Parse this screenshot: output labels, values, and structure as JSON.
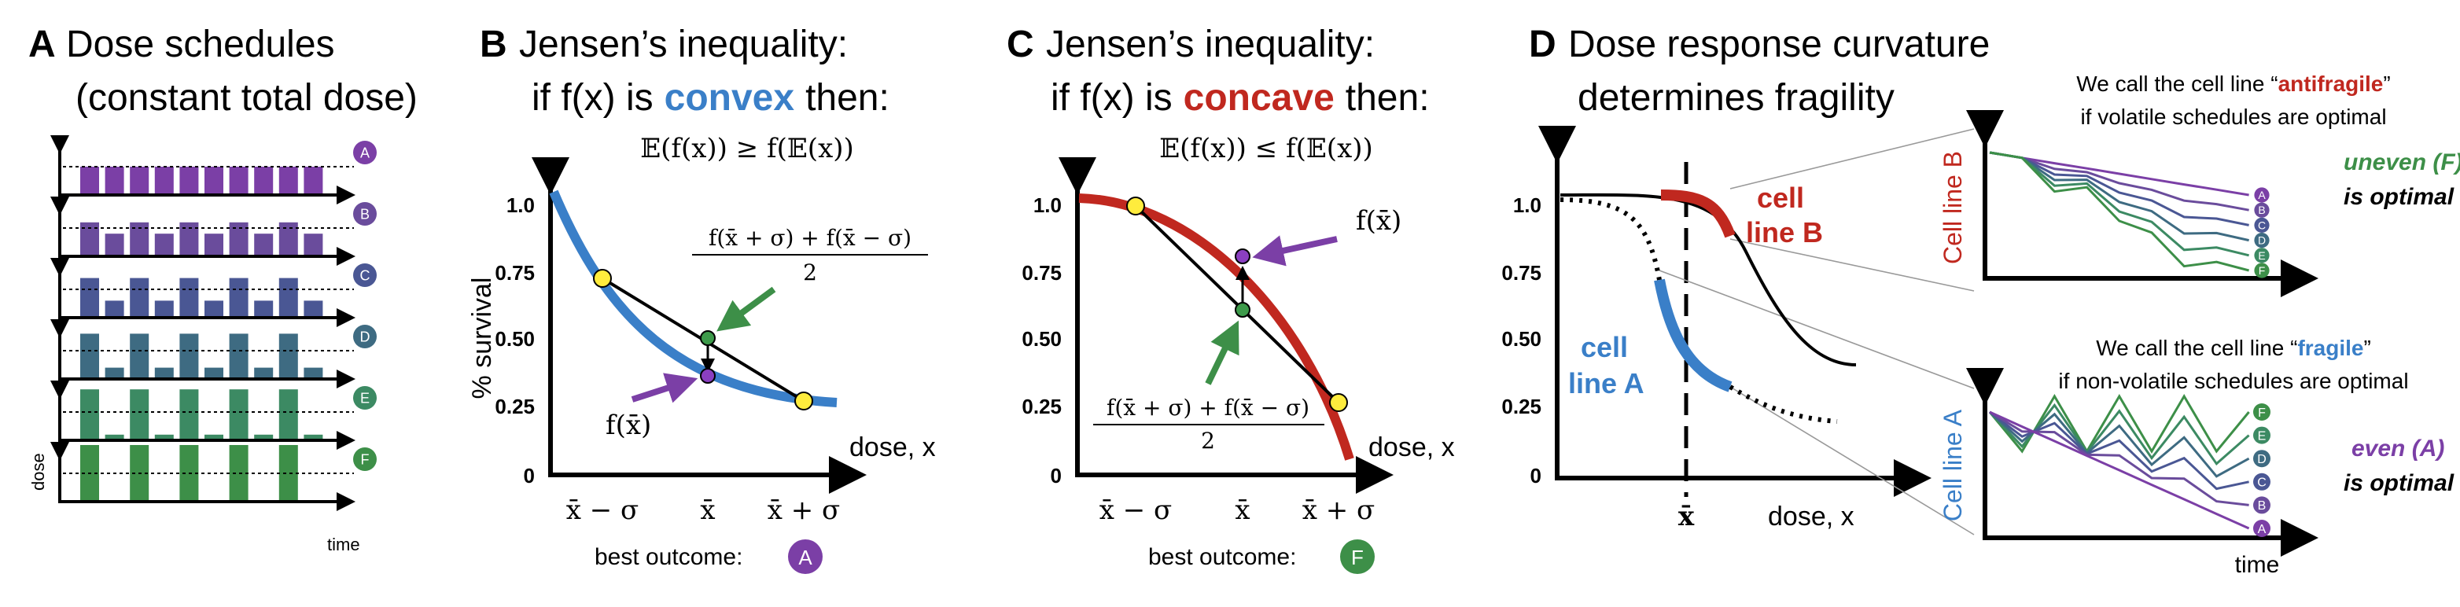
{
  "panel_a": {
    "letter": "A",
    "title": "Dose schedules",
    "subtitle": "(constant total dose)",
    "schedules": [
      "A",
      "B",
      "C",
      "D",
      "E",
      "F"
    ],
    "y_label": "dose",
    "x_label": "time"
  },
  "panel_b": {
    "letter": "B",
    "title": "Jensen’s inequality:",
    "subtitle_pre": "if f(x) is",
    "keyword": "convex",
    "subtitle_post": "then:",
    "inequality": "𝔼(f(x)) ≥ f(𝔼(x))",
    "y_label": "% survival",
    "yticks": [
      "1.0",
      "0.75",
      "0.50",
      "0.25",
      "0"
    ],
    "xticks": [
      "x̄ − σ",
      "x̄",
      "x̄ + σ"
    ],
    "x_label": "dose, x",
    "fraction_numerator": "f(x̄ + σ) + f(x̄ − σ)",
    "fraction_denominator": "2",
    "point_label": "f(x̄)",
    "outcome_label": "best outcome:",
    "outcome": "A"
  },
  "panel_c": {
    "letter": "C",
    "title": "Jensen’s inequality:",
    "subtitle_pre": "if f(x) is",
    "keyword": "concave",
    "subtitle_post": "then:",
    "inequality": "𝔼(f(x)) ≤ f(𝔼(x))",
    "yticks": [
      "1.0",
      "0.75",
      "0.50",
      "0.25",
      "0"
    ],
    "xticks": [
      "x̄ − σ",
      "x̄",
      "x̄ + σ"
    ],
    "x_label": "dose, x",
    "fraction_numerator": "f(x̄ + σ) + f(x̄ − σ)",
    "fraction_denominator": "2",
    "point_label": "f(x̄)",
    "outcome_label": "best outcome:",
    "outcome": "F"
  },
  "panel_d": {
    "letter": "D",
    "title": "Dose response curvature",
    "subtitle": "determines fragility",
    "yticks": [
      "1.0",
      "0.75",
      "0.50",
      "0.25",
      "0"
    ],
    "x_mark": "x̄",
    "x_label": "dose, x",
    "curve_b_label": [
      "cell",
      "line B"
    ],
    "curve_a_label": [
      "cell",
      "line A"
    ],
    "inset_b": {
      "caption_pre": "We call the cell line “",
      "keyword": "antifragile",
      "caption_post": "”",
      "caption_line2": "if volatile schedules are optimal",
      "y_label": "Cell line B",
      "schedules": [
        "A",
        "B",
        "C",
        "D",
        "E",
        "F"
      ],
      "verdict": "uneven (F)",
      "verdict2": "is optimal"
    },
    "inset_a": {
      "caption_pre": "We call the cell line “",
      "keyword": "fragile",
      "caption_post": "”",
      "caption_line2": "if non-volatile schedules are optimal",
      "y_label": "Cell line A",
      "schedules": [
        "F",
        "E",
        "D",
        "C",
        "B",
        "A"
      ],
      "verdict": "even (A)",
      "verdict2": "is optimal",
      "x_label": "time"
    }
  }
}
